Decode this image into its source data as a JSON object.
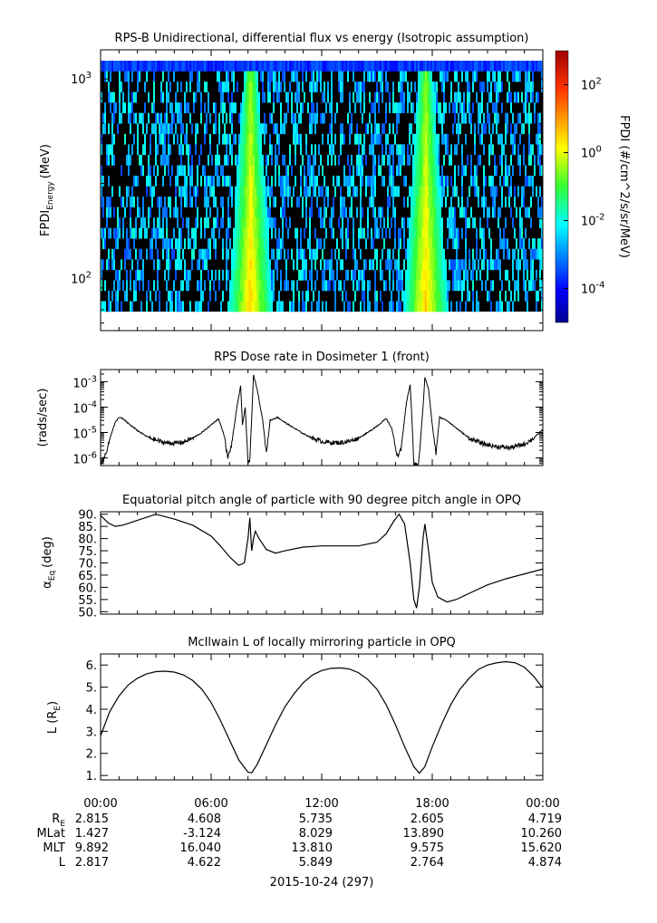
{
  "chart_data": [
    {
      "type": "heatmap",
      "title": "RPS-B  Unidirectional, differential flux vs energy (Isotropic assumption)",
      "ylabel_main": "FPDI",
      "ylabel_sub": "Energy",
      "ylabel_unit": "(MeV)",
      "y_scale": "log",
      "ylim": [
        55,
        1400
      ],
      "y_ticks": [
        {
          "value": 100,
          "base": "10",
          "exp": "2"
        },
        {
          "value": 1000,
          "base": "10",
          "exp": "3"
        }
      ],
      "bursts_hours": [
        8.1,
        17.6
      ],
      "colorbar": {
        "label": "FPDI (#/cm^2/s/sr/MeV)",
        "scale": "log",
        "range": [
          1e-05,
          1000.0
        ],
        "ticks": [
          {
            "value": 0.0001,
            "base": "10",
            "exp": "-4"
          },
          {
            "value": 0.01,
            "base": "10",
            "exp": "-2"
          },
          {
            "value": 1,
            "base": "10",
            "exp": "0"
          },
          {
            "value": 100,
            "base": "10",
            "exp": "2"
          }
        ]
      }
    },
    {
      "type": "line",
      "title": "RPS  Dose rate in Dosimeter 1 (front)",
      "ylabel": "(rads/sec)",
      "y_scale": "log",
      "ylim": [
        5e-07,
        0.003
      ],
      "y_ticks": [
        {
          "value": 1e-06,
          "base": "10",
          "exp": "-6"
        },
        {
          "value": 1e-05,
          "base": "10",
          "exp": "-5"
        },
        {
          "value": 0.0001,
          "base": "10",
          "exp": "-4"
        },
        {
          "value": 0.001,
          "base": "10",
          "exp": "-3"
        }
      ],
      "points": [
        [
          0.0,
          6e-07
        ],
        [
          0.2,
          1e-06
        ],
        [
          0.4,
          3e-06
        ],
        [
          0.6,
          1e-05
        ],
        [
          0.8,
          2.5e-05
        ],
        [
          1.0,
          4e-05
        ],
        [
          1.2,
          3.5e-05
        ],
        [
          1.6,
          2e-05
        ],
        [
          2.0,
          1.2e-05
        ],
        [
          2.5,
          7e-06
        ],
        [
          3.0,
          5e-06
        ],
        [
          3.5,
          4e-06
        ],
        [
          4.0,
          3.8e-06
        ],
        [
          4.5,
          4.2e-06
        ],
        [
          5.0,
          6e-06
        ],
        [
          5.5,
          1e-05
        ],
        [
          6.0,
          2e-05
        ],
        [
          6.4,
          3.5e-05
        ],
        [
          6.7,
          8e-06
        ],
        [
          6.9,
          1e-06
        ],
        [
          7.1,
          3e-06
        ],
        [
          7.4,
          0.0001
        ],
        [
          7.6,
          0.0007
        ],
        [
          7.7,
          2e-05
        ],
        [
          7.85,
          0.0001
        ],
        [
          8.0,
          6e-07
        ],
        [
          8.1,
          8e-07
        ],
        [
          8.3,
          0.0018
        ],
        [
          8.5,
          0.0005
        ],
        [
          8.8,
          3e-05
        ],
        [
          9.0,
          1.5e-06
        ],
        [
          9.2,
          3e-05
        ],
        [
          9.6,
          4e-05
        ],
        [
          10.0,
          2.5e-05
        ],
        [
          10.5,
          1.5e-05
        ],
        [
          11.0,
          9e-06
        ],
        [
          11.5,
          6e-06
        ],
        [
          12.0,
          4.5e-06
        ],
        [
          12.5,
          4e-06
        ],
        [
          13.0,
          4e-06
        ],
        [
          13.5,
          4.5e-06
        ],
        [
          14.0,
          6e-06
        ],
        [
          14.5,
          1e-05
        ],
        [
          15.0,
          1.8e-05
        ],
        [
          15.5,
          3.5e-05
        ],
        [
          15.8,
          1.5e-05
        ],
        [
          16.1,
          1.2e-06
        ],
        [
          16.3,
          2e-06
        ],
        [
          16.6,
          0.00015
        ],
        [
          16.8,
          0.0008
        ],
        [
          16.9,
          3e-05
        ],
        [
          17.0,
          6e-07
        ],
        [
          17.25,
          5e-07
        ],
        [
          17.5,
          0.0001
        ],
        [
          17.6,
          0.0015
        ],
        [
          17.8,
          0.0005
        ],
        [
          18.0,
          2e-05
        ],
        [
          18.2,
          1.5e-06
        ],
        [
          18.4,
          4e-05
        ],
        [
          18.8,
          3e-05
        ],
        [
          19.3,
          1.5e-05
        ],
        [
          20.0,
          6e-06
        ],
        [
          20.8,
          3.5e-06
        ],
        [
          21.5,
          2.8e-06
        ],
        [
          22.2,
          2.5e-06
        ],
        [
          23.0,
          3.5e-06
        ],
        [
          23.5,
          6e-06
        ],
        [
          24.0,
          1.3e-05
        ]
      ]
    },
    {
      "type": "line",
      "title": "Equatorial pitch angle of particle with 90 degree pitch angle in OPQ",
      "ylabel_main": "α",
      "ylabel_sub": "Eq",
      "ylabel_unit": "(deg)",
      "ylim": [
        49,
        91
      ],
      "y_ticks": [
        "50.",
        "55.",
        "60.",
        "65.",
        "70.",
        "75.",
        "80.",
        "85.",
        "90."
      ],
      "points": [
        [
          0.0,
          89.5
        ],
        [
          0.4,
          86.5
        ],
        [
          0.8,
          85.0
        ],
        [
          1.2,
          85.5
        ],
        [
          2.0,
          87.5
        ],
        [
          3.0,
          90.0
        ],
        [
          4.0,
          88.0
        ],
        [
          5.0,
          85.5
        ],
        [
          6.0,
          81.0
        ],
        [
          6.5,
          77.0
        ],
        [
          7.0,
          72.5
        ],
        [
          7.5,
          69.0
        ],
        [
          7.8,
          70.0
        ],
        [
          8.0,
          80.0
        ],
        [
          8.1,
          88.5
        ],
        [
          8.2,
          75.0
        ],
        [
          8.3,
          80.0
        ],
        [
          8.4,
          83.0
        ],
        [
          8.6,
          80.0
        ],
        [
          9.0,
          75.5
        ],
        [
          9.5,
          74.0
        ],
        [
          10.0,
          75.0
        ],
        [
          11.0,
          76.5
        ],
        [
          12.0,
          77.0
        ],
        [
          13.0,
          77.0
        ],
        [
          14.0,
          77.0
        ],
        [
          15.0,
          78.5
        ],
        [
          15.5,
          82.0
        ],
        [
          15.9,
          87.0
        ],
        [
          16.2,
          90.0
        ],
        [
          16.5,
          86.0
        ],
        [
          16.8,
          70.0
        ],
        [
          17.0,
          55.0
        ],
        [
          17.15,
          51.5
        ],
        [
          17.3,
          60.0
        ],
        [
          17.5,
          80.0
        ],
        [
          17.6,
          86.0
        ],
        [
          17.8,
          75.0
        ],
        [
          18.0,
          62.0
        ],
        [
          18.3,
          56.0
        ],
        [
          18.8,
          54.0
        ],
        [
          19.3,
          55.0
        ],
        [
          20.0,
          57.5
        ],
        [
          21.0,
          61.0
        ],
        [
          22.0,
          63.5
        ],
        [
          23.0,
          65.5
        ],
        [
          24.0,
          67.5
        ]
      ]
    },
    {
      "type": "line",
      "title": "McIlwain L of locally mirroring particle in OPQ",
      "ylabel_main": "L (R",
      "ylabel_sub": "E",
      "ylabel_end": ")",
      "ylim": [
        0.8,
        6.5
      ],
      "y_ticks": [
        "1.",
        "2.",
        "3.",
        "4.",
        "5.",
        "6."
      ],
      "points": [
        [
          0.0,
          2.8
        ],
        [
          0.5,
          3.9
        ],
        [
          1.0,
          4.6
        ],
        [
          1.5,
          5.1
        ],
        [
          2.0,
          5.4
        ],
        [
          2.5,
          5.6
        ],
        [
          3.0,
          5.7
        ],
        [
          3.5,
          5.72
        ],
        [
          4.0,
          5.68
        ],
        [
          4.5,
          5.55
        ],
        [
          5.0,
          5.3
        ],
        [
          5.5,
          4.9
        ],
        [
          6.0,
          4.3
        ],
        [
          6.5,
          3.5
        ],
        [
          7.0,
          2.6
        ],
        [
          7.5,
          1.7
        ],
        [
          8.0,
          1.15
        ],
        [
          8.2,
          1.12
        ],
        [
          8.5,
          1.5
        ],
        [
          9.0,
          2.4
        ],
        [
          9.5,
          3.3
        ],
        [
          10.0,
          4.1
        ],
        [
          10.5,
          4.7
        ],
        [
          11.0,
          5.2
        ],
        [
          11.5,
          5.55
        ],
        [
          12.0,
          5.75
        ],
        [
          12.5,
          5.85
        ],
        [
          13.0,
          5.87
        ],
        [
          13.5,
          5.82
        ],
        [
          14.0,
          5.65
        ],
        [
          14.5,
          5.35
        ],
        [
          15.0,
          4.9
        ],
        [
          15.5,
          4.2
        ],
        [
          16.0,
          3.3
        ],
        [
          16.5,
          2.3
        ],
        [
          17.0,
          1.4
        ],
        [
          17.3,
          1.1
        ],
        [
          17.6,
          1.4
        ],
        [
          18.0,
          2.3
        ],
        [
          18.5,
          3.3
        ],
        [
          19.0,
          4.2
        ],
        [
          19.5,
          4.9
        ],
        [
          20.0,
          5.4
        ],
        [
          20.5,
          5.8
        ],
        [
          21.0,
          6.0
        ],
        [
          21.5,
          6.1
        ],
        [
          22.0,
          6.15
        ],
        [
          22.5,
          6.1
        ],
        [
          23.0,
          5.9
        ],
        [
          23.5,
          5.5
        ],
        [
          24.0,
          4.95
        ]
      ]
    }
  ],
  "x_axis": {
    "ticks": [
      "00:00",
      "06:00",
      "12:00",
      "18:00",
      "00:00"
    ],
    "date_label": "2015-10-24 (297)"
  },
  "ephemeris": [
    {
      "name": "R",
      "sub": "E",
      "values": [
        "2.815",
        "4.608",
        "5.735",
        "2.605",
        "4.719"
      ]
    },
    {
      "name": "MLat",
      "sub": "",
      "values": [
        "1.427",
        "-3.124",
        "8.029",
        "13.890",
        "10.260"
      ]
    },
    {
      "name": "MLT",
      "sub": "",
      "values": [
        "9.892",
        "16.040",
        "13.810",
        "9.575",
        "15.620"
      ]
    },
    {
      "name": "L",
      "sub": "",
      "values": [
        "2.817",
        "4.622",
        "5.849",
        "2.764",
        "4.874"
      ]
    }
  ]
}
